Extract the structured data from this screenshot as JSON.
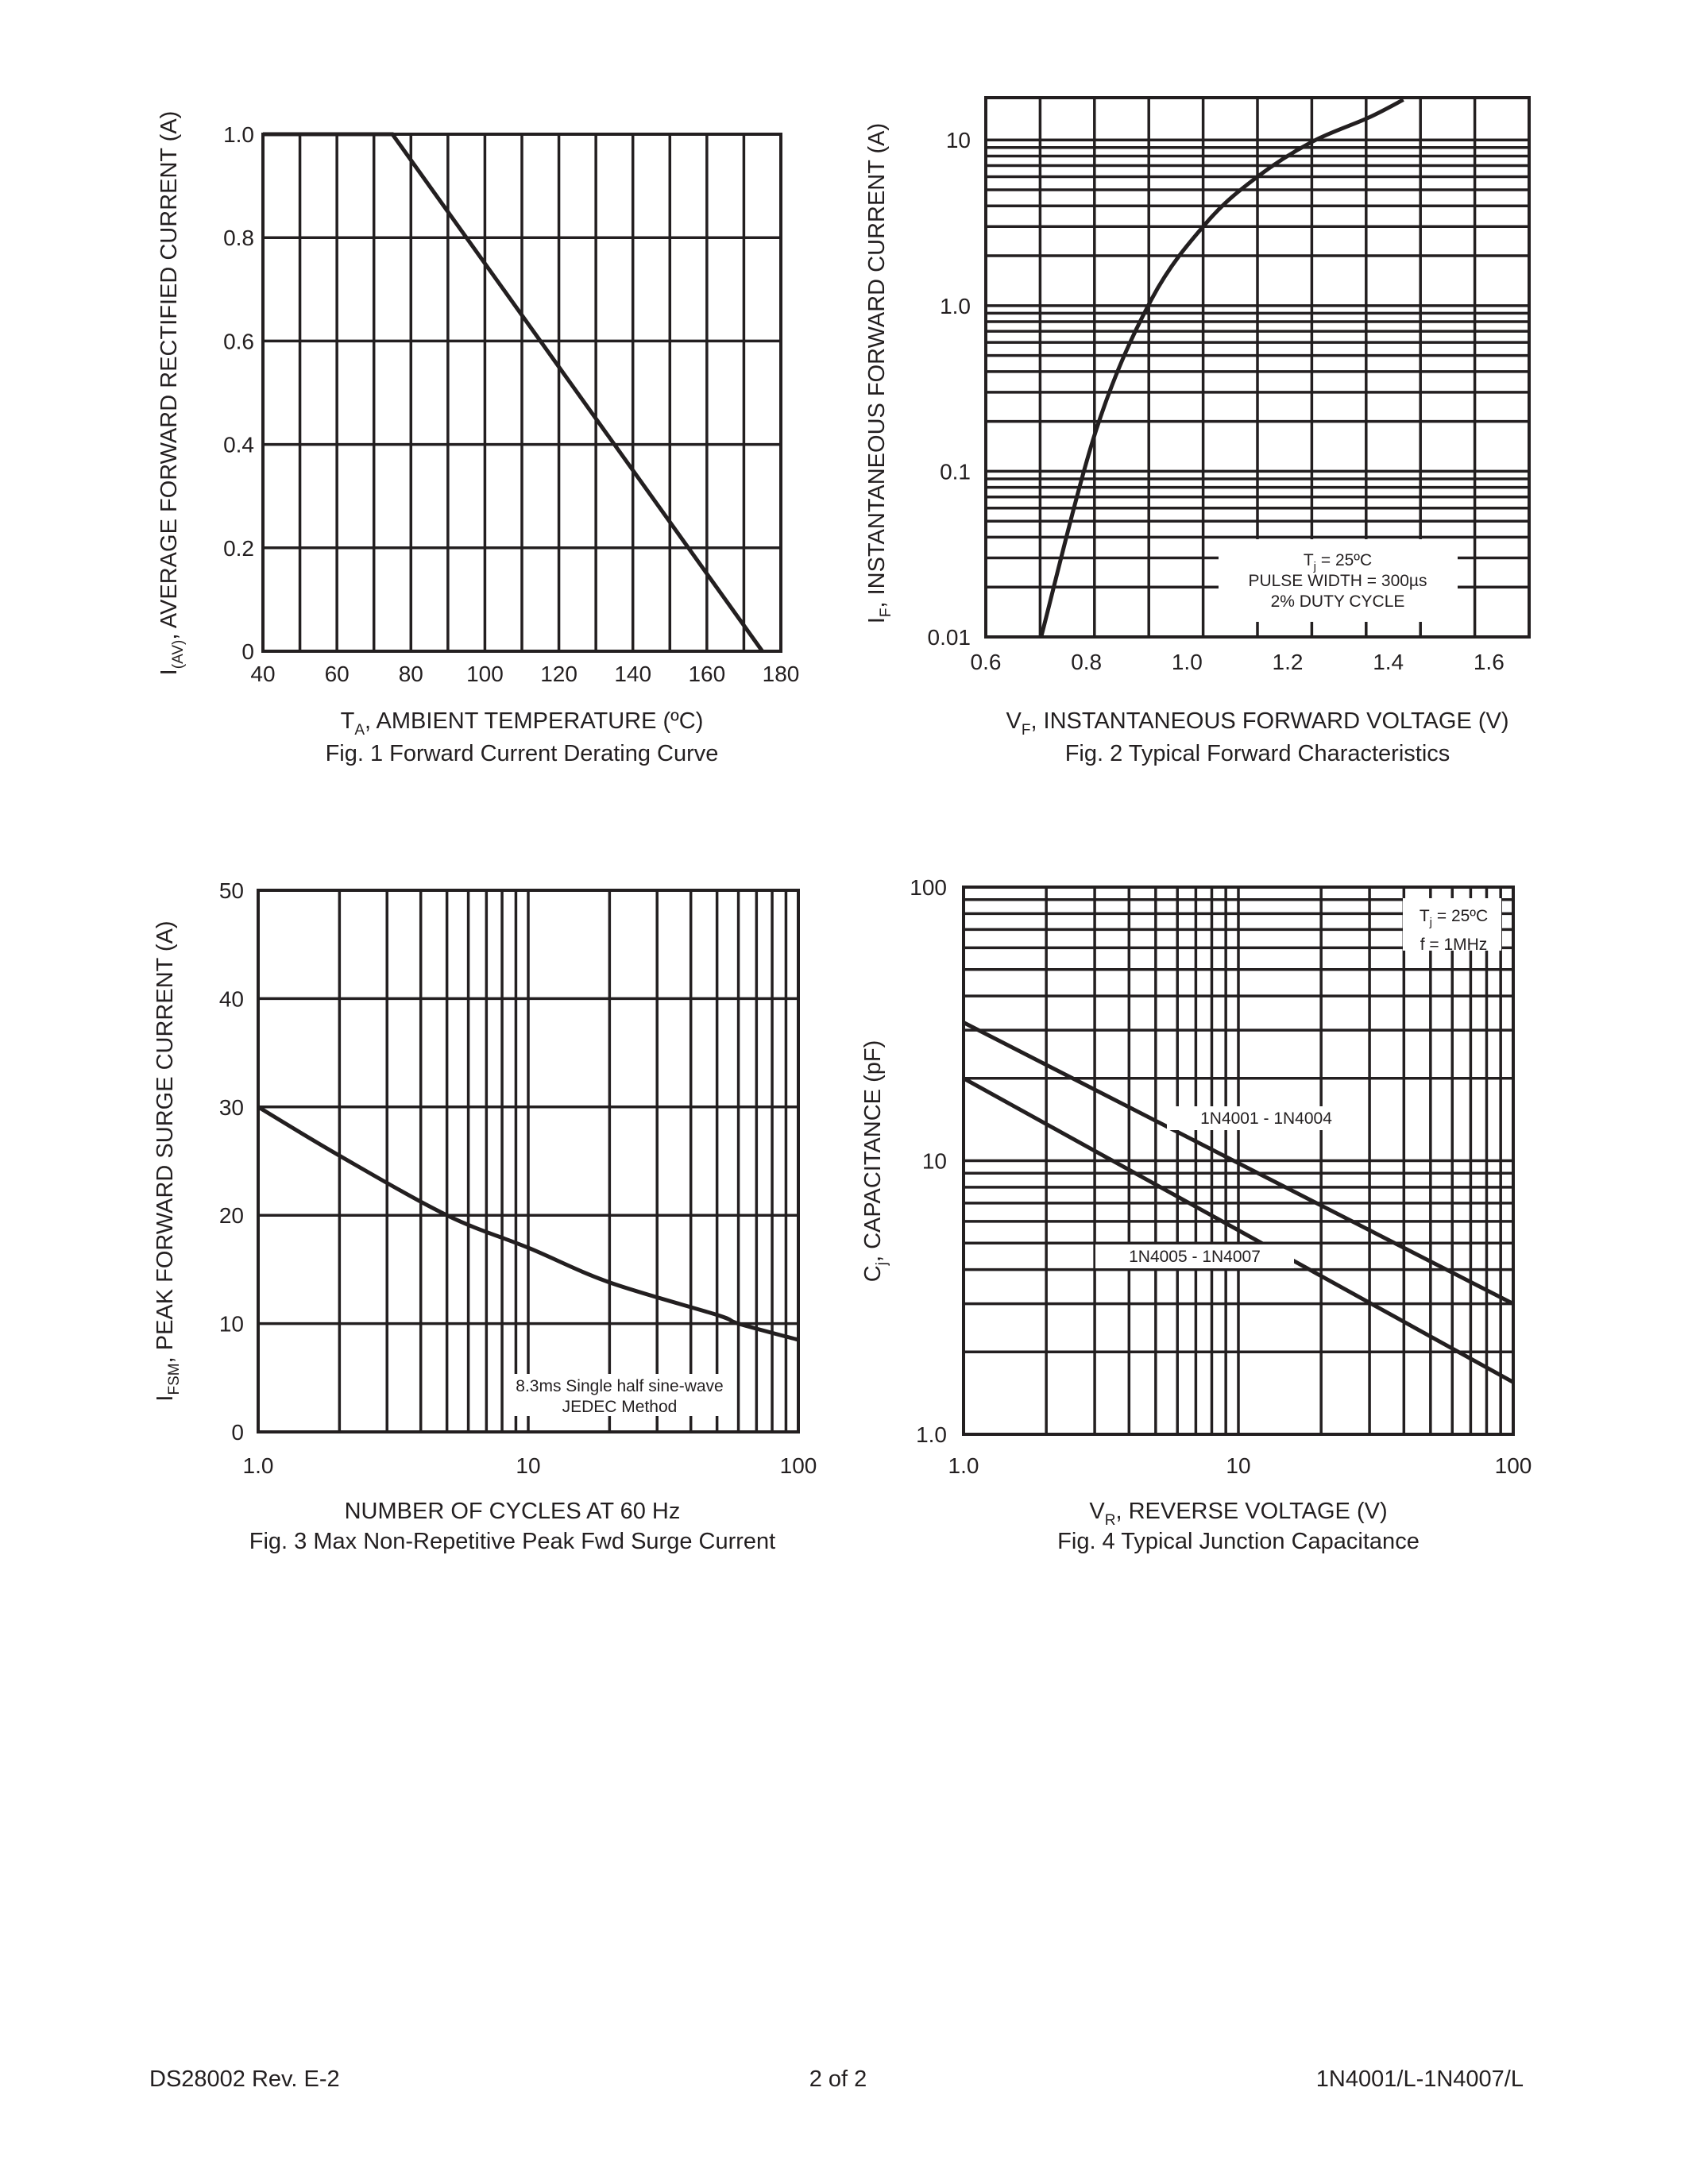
{
  "colors": {
    "ink": "#231f20",
    "background": "#ffffff"
  },
  "chart_data": [
    {
      "type": "line",
      "title": "Fig. 1 Forward Current Derating Curve",
      "xlabel": {
        "main": "T",
        "sub": "A",
        "rest": ", AMBIENT TEMPERATURE (ºC)"
      },
      "ylabel": {
        "main": "I",
        "sub": "(AV)",
        "rest": ", AVERAGE FORWARD RECTIFIED CURRENT (A)"
      },
      "x_scale": "linear",
      "y_scale": "linear",
      "xlim": [
        40,
        180
      ],
      "ylim": [
        0,
        1.0
      ],
      "x_ticks": [
        "40",
        "60",
        "80",
        "100",
        "120",
        "140",
        "160",
        "180"
      ],
      "y_ticks": [
        "0",
        "0.2",
        "0.4",
        "0.6",
        "0.8",
        "1.0"
      ],
      "grid": true,
      "series": [
        {
          "x": [
            40,
            75,
            175
          ],
          "y": [
            1.0,
            1.0,
            0
          ]
        }
      ]
    },
    {
      "type": "line",
      "title": "Fig. 2 Typical Forward Characteristics",
      "xlabel": {
        "main": "V",
        "sub": "F",
        "rest": ", INSTANTANEOUS FORWARD VOLTAGE (V)"
      },
      "ylabel": {
        "main": "I",
        "sub": "F",
        "rest": ", INSTANTANEOUS FORWARD CURRENT (A)"
      },
      "x_scale": "linear",
      "y_scale": "log",
      "xlim": [
        0.6,
        1.68
      ],
      "ylim": [
        0.01,
        18
      ],
      "x_ticks": [
        "0.6",
        "0.8",
        "1.0",
        "1.2",
        "1.4",
        "1.6"
      ],
      "y_ticks": [
        "0.01",
        "0.1",
        "1.0",
        "10"
      ],
      "grid": true,
      "annotation": {
        "main": "T",
        "sub": "j",
        "rest": " = 25ºC",
        "lines": [
          "PULSE WIDTH = 300µs",
          "2% DUTY CYCLE"
        ]
      },
      "series": [
        {
          "x": [
            0.71,
            0.82,
            0.93,
            1.04,
            1.14,
            1.25,
            1.36,
            1.43
          ],
          "y": [
            0.01,
            0.18,
            1.1,
            3.2,
            6.0,
            9.8,
            13.6,
            17.5
          ]
        }
      ]
    },
    {
      "type": "line",
      "title": "Fig. 3  Max Non-Repetitive Peak Fwd Surge Current",
      "xlabel": {
        "main": "NUMBER OF CYCLES AT 60 Hz",
        "sub": "",
        "rest": ""
      },
      "ylabel": {
        "main": "I",
        "sub": "FSM",
        "rest": ", PEAK FORWARD SURGE CURRENT (A)"
      },
      "x_scale": "log",
      "y_scale": "linear",
      "xlim": [
        1,
        100
      ],
      "ylim": [
        0,
        50
      ],
      "x_ticks": [
        "1.0",
        "10",
        "100"
      ],
      "y_ticks": [
        "0",
        "10",
        "20",
        "30",
        "40",
        "50"
      ],
      "grid": true,
      "annotation": {
        "lines": [
          "8.3ms Single half sine-wave",
          "JEDEC Method"
        ]
      },
      "series": [
        {
          "x": [
            1,
            2,
            5,
            10,
            20,
            50,
            60,
            100
          ],
          "y": [
            30,
            25.5,
            20,
            17,
            13.8,
            10.8,
            10,
            8.5
          ]
        }
      ]
    },
    {
      "type": "line",
      "title": "Fig. 4 Typical Junction Capacitance",
      "xlabel": {
        "main": "V",
        "sub": "R",
        "rest": ", REVERSE VOLTAGE (V)"
      },
      "ylabel": {
        "main": "C",
        "sub": "j",
        "rest": ", CAPACITANCE (pF)"
      },
      "x_scale": "log",
      "y_scale": "log",
      "xlim": [
        1,
        100
      ],
      "ylim": [
        1,
        100
      ],
      "x_ticks": [
        "1.0",
        "10",
        "100"
      ],
      "y_ticks": [
        "1.0",
        "10",
        "100"
      ],
      "grid": true,
      "annotation": {
        "main": "T",
        "sub": "j",
        "rest": " = 25ºC",
        "lines": [
          "f = 1MHz"
        ]
      },
      "series": [
        {
          "name": "1N4001 - 1N4004",
          "x": [
            1,
            100
          ],
          "y": [
            32,
            3.0
          ]
        },
        {
          "name": "1N4005 - 1N4007",
          "x": [
            1,
            100
          ],
          "y": [
            20,
            1.55
          ]
        }
      ]
    }
  ],
  "footer": {
    "left": "DS28002 Rev. E-2",
    "center": "2 of 2",
    "right": "1N4001/L-1N4007/L"
  }
}
